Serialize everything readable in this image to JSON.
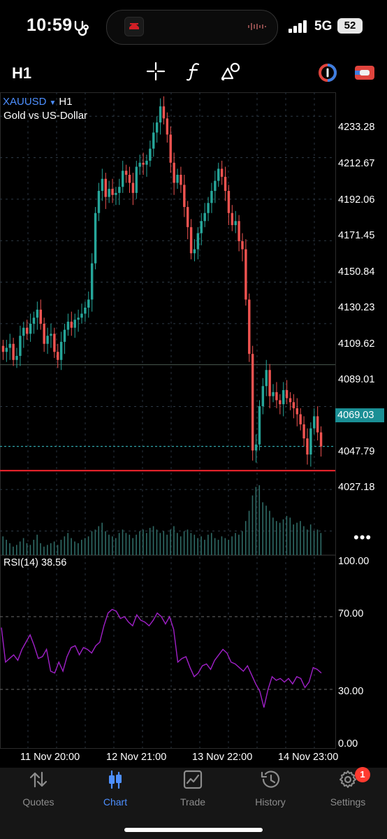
{
  "status_bar": {
    "time": "10:59",
    "network": "5G",
    "battery": "52"
  },
  "toolbar": {
    "timeframe": "H1",
    "icons": [
      "crosshair-icon",
      "function-icon",
      "objects-icon",
      "color-theme-icon",
      "switch-account-icon"
    ]
  },
  "chart": {
    "symbol": "XAUUSD",
    "timeframe": "H1",
    "description": "Gold vs US-Dollar",
    "price_labels": [
      "4233.28",
      "4212.67",
      "4192.06",
      "4171.45",
      "4150.84",
      "4130.23",
      "4109.62",
      "4089.01",
      "4047.79",
      "4027.18"
    ],
    "last_price": "4069.03",
    "colors": {
      "bull": "#26a69a",
      "bear": "#ef5350",
      "line_level": "#e0222a",
      "rsi": "#a020c8"
    },
    "rsi": {
      "title": "RSI(14)",
      "value": "38.56",
      "levels": [
        "100.00",
        "70.00",
        "30.00",
        "0.00"
      ]
    },
    "time_labels": [
      "11 Nov 20:00",
      "12 Nov 21:00",
      "13 Nov 22:00",
      "14 Nov 23:00"
    ]
  },
  "chart_data": {
    "type": "candlestick",
    "ylim": [
      4015,
      4245
    ],
    "level_line": 4057,
    "grid_line": 4109.62,
    "close_series": [
      4116,
      4118,
      4120,
      4112,
      4114,
      4124,
      4128,
      4125,
      4130,
      4133,
      4137,
      4130,
      4120,
      4124,
      4125,
      4116,
      4112,
      4121,
      4127,
      4131,
      4128,
      4132,
      4133,
      4135,
      4138,
      4142,
      4160,
      4185,
      4196,
      4202,
      4193,
      4197,
      4194,
      4195,
      4198,
      4206,
      4204,
      4200,
      4195,
      4208,
      4210,
      4209,
      4211,
      4217,
      4225,
      4230,
      4238,
      4232,
      4224,
      4210,
      4200,
      4204,
      4199,
      4188,
      4178,
      4165,
      4167,
      4175,
      4181,
      4185,
      4190,
      4196,
      4201,
      4207,
      4203,
      4196,
      4185,
      4179,
      4181,
      4171,
      4167,
      4142,
      4115,
      4067,
      4070,
      4089,
      4099,
      4107,
      4094,
      4096,
      4092,
      4090,
      4097,
      4093,
      4091,
      4088,
      4085,
      4080,
      4073,
      4065,
      4078,
      4084,
      4076,
      4069
    ],
    "volume": [
      22,
      18,
      14,
      10,
      12,
      16,
      20,
      14,
      12,
      18,
      24,
      14,
      10,
      12,
      14,
      16,
      12,
      18,
      22,
      26,
      20,
      16,
      14,
      18,
      20,
      22,
      28,
      30,
      34,
      38,
      28,
      24,
      22,
      20,
      26,
      30,
      26,
      24,
      20,
      24,
      28,
      30,
      26,
      32,
      34,
      30,
      26,
      28,
      24,
      30,
      34,
      26,
      22,
      28,
      30,
      26,
      24,
      20,
      22,
      18,
      24,
      26,
      20,
      18,
      22,
      20,
      18,
      22,
      26,
      24,
      28,
      40,
      52,
      70,
      80,
      82,
      62,
      58,
      52,
      44,
      40,
      38,
      42,
      46,
      44,
      36,
      38,
      40,
      34,
      30,
      36,
      28,
      30,
      26
    ],
    "rsi_series": [
      64,
      45,
      47,
      49,
      46,
      52,
      56,
      60,
      54,
      47,
      48,
      52,
      40,
      39,
      45,
      40,
      48,
      53,
      54,
      49,
      53,
      52,
      50,
      54,
      56,
      65,
      72,
      74,
      73,
      69,
      70,
      67,
      65,
      71,
      68,
      67,
      65,
      68,
      72,
      70,
      66,
      70,
      63,
      45,
      47,
      48,
      42,
      37,
      39,
      43,
      44,
      41,
      46,
      49,
      52,
      50,
      45,
      44,
      42,
      40,
      43,
      38,
      33,
      29,
      20,
      30,
      37,
      35,
      36,
      34,
      36,
      33,
      37,
      36,
      31,
      34,
      42,
      41,
      39
    ],
    "rsi_levels": [
      70,
      30
    ],
    "rsi_range": [
      0,
      100
    ]
  },
  "nav": {
    "items": [
      {
        "label": "Quotes",
        "icon": "quotes-icon"
      },
      {
        "label": "Chart",
        "icon": "chart-icon"
      },
      {
        "label": "Trade",
        "icon": "trade-icon"
      },
      {
        "label": "History",
        "icon": "history-icon"
      },
      {
        "label": "Settings",
        "icon": "settings-icon"
      }
    ],
    "active": "Chart",
    "badge": "1"
  }
}
